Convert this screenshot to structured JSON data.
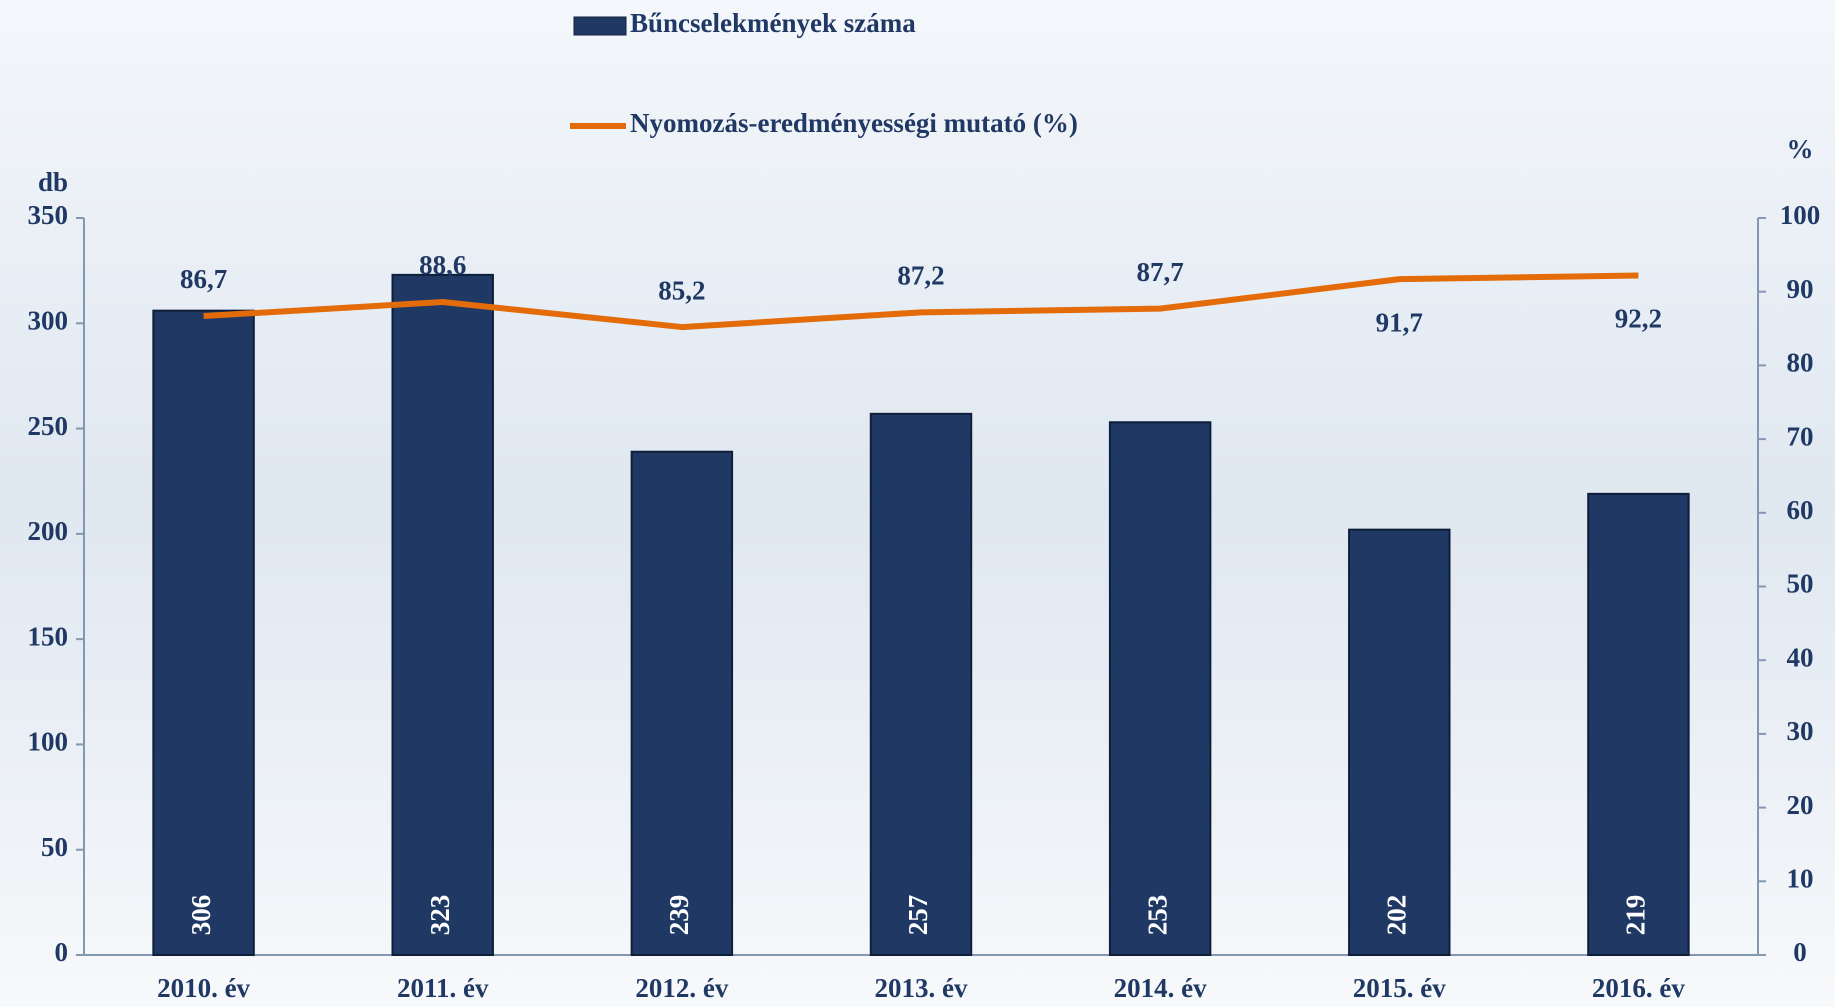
{
  "chart_data": {
    "type": "bar",
    "categories": [
      "2010. év",
      "2011. év",
      "2012. év",
      "2013. év",
      "2014. év",
      "2015. év",
      "2016. év"
    ],
    "series": [
      {
        "name": "Bűncselekmények száma",
        "type": "bar",
        "color": "#1f3864",
        "values": [
          306,
          323,
          239,
          257,
          253,
          202,
          219
        ]
      },
      {
        "name": "Nyomozás-eredményességi mutató (%)",
        "type": "line",
        "axis": "y2",
        "color": "#e36c09",
        "values": [
          86.7,
          88.6,
          85.2,
          87.2,
          87.7,
          91.7,
          92.2
        ],
        "value_labels": [
          "86,7",
          "88,6",
          "85,2",
          "87,2",
          "87,7",
          "91,7",
          "92,2"
        ]
      }
    ],
    "y_label": "db",
    "y2_label": "%",
    "ylim": [
      0,
      350
    ],
    "yticks": [
      0,
      50,
      100,
      150,
      200,
      250,
      300,
      350
    ],
    "y2lim": [
      0,
      100
    ],
    "y2ticks": [
      0,
      10,
      20,
      30,
      40,
      50,
      60,
      70,
      80,
      90,
      100
    ],
    "grid": false
  }
}
